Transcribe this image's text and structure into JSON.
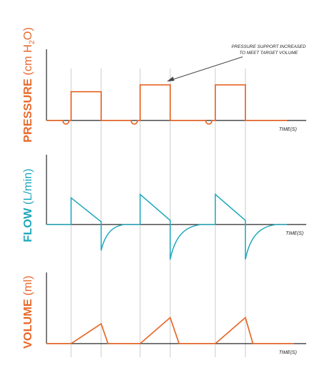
{
  "colors": {
    "orange": "#E8692B",
    "teal": "#22A9BC",
    "axis": "#222222",
    "guide": "#C8C8C8"
  },
  "panels": {
    "pressure": {
      "label_bold": "PRESSURE",
      "label_rest": " (cm H",
      "label_sub": "2",
      "label_end": "O)",
      "x_label": "TIME(S)"
    },
    "flow": {
      "label_bold": "FLOW",
      "label_rest": " (L/min)",
      "x_label": "TIME(S)"
    },
    "volume": {
      "label_bold": "VOLUME",
      "label_rest": " (ml)",
      "x_label": "TIME(S)"
    }
  },
  "annotation": {
    "line1": "PRESSURE SUPPORT INCREASED",
    "line2": "TO MEET TARGET VOLUME"
  },
  "chart_data": [
    {
      "type": "line",
      "series": [
        {
          "values": "square pressure pulses with small negative trigger dips; pulses 2 and 3 higher than pulse 1"
        }
      ],
      "xlabel": "TIME(S)",
      "ylabel": "PRESSURE (cm H2O)"
    },
    {
      "type": "line",
      "series": [
        {
          "values": "decelerating inspiratory flow ramps followed by negative exponential expiratory flow"
        }
      ],
      "xlabel": "TIME(S)",
      "ylabel": "FLOW (L/min)"
    },
    {
      "type": "line",
      "series": [
        {
          "values": "triangular volume rise during inspiration, falling during expiration"
        }
      ],
      "xlabel": "TIME(S)",
      "ylabel": "VOLUME (ml)"
    }
  ]
}
